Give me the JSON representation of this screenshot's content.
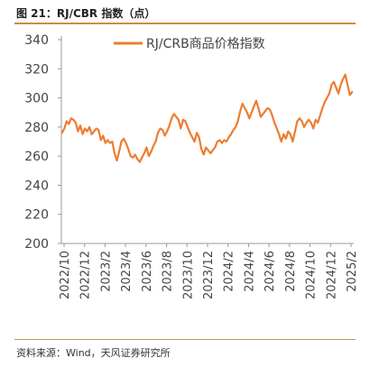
{
  "figure": {
    "title": "图 21：RJ/CBR 指数（点）",
    "source": "资料来源：Wind，天风证券研究所"
  },
  "chart_data": {
    "type": "line",
    "title": "",
    "xlabel": "",
    "ylabel": "",
    "ylim": [
      200,
      340
    ],
    "yticks": [
      200,
      220,
      240,
      260,
      280,
      300,
      320,
      340
    ],
    "x_tick_labels": [
      "2022/10",
      "2022/12",
      "2023/2",
      "2023/4",
      "2023/6",
      "2023/8",
      "2023/10",
      "2023/12",
      "2024/2",
      "2024/4",
      "2024/6",
      "2024/8",
      "2024/10",
      "2024/12",
      "2025/2"
    ],
    "grid": false,
    "legend_position": "top-center",
    "series": [
      {
        "name": "RJ/CRB商品价格指数",
        "color": "#ed7d31",
        "points": [
          [
            "2022-10-03",
            276
          ],
          [
            "2022-10-10",
            279
          ],
          [
            "2022-10-17",
            284
          ],
          [
            "2022-10-24",
            282
          ],
          [
            "2022-10-31",
            286
          ],
          [
            "2022-11-07",
            285
          ],
          [
            "2022-11-14",
            283
          ],
          [
            "2022-11-21",
            277
          ],
          [
            "2022-11-28",
            281
          ],
          [
            "2022-12-05",
            275
          ],
          [
            "2022-12-12",
            279
          ],
          [
            "2022-12-19",
            277
          ],
          [
            "2022-12-26",
            280
          ],
          [
            "2023-01-02",
            275
          ],
          [
            "2023-01-09",
            277
          ],
          [
            "2023-01-16",
            279
          ],
          [
            "2023-01-23",
            278
          ],
          [
            "2023-01-30",
            271
          ],
          [
            "2023-02-06",
            274
          ],
          [
            "2023-02-13",
            269
          ],
          [
            "2023-02-20",
            271
          ],
          [
            "2023-02-27",
            269
          ],
          [
            "2023-03-06",
            270
          ],
          [
            "2023-03-13",
            262
          ],
          [
            "2023-03-20",
            257
          ],
          [
            "2023-03-27",
            263
          ],
          [
            "2023-04-03",
            270
          ],
          [
            "2023-04-10",
            272
          ],
          [
            "2023-04-17",
            269
          ],
          [
            "2023-04-24",
            265
          ],
          [
            "2023-05-01",
            260
          ],
          [
            "2023-05-08",
            259
          ],
          [
            "2023-05-15",
            261
          ],
          [
            "2023-05-22",
            258
          ],
          [
            "2023-05-29",
            256
          ],
          [
            "2023-06-05",
            259
          ],
          [
            "2023-06-12",
            262
          ],
          [
            "2023-06-19",
            266
          ],
          [
            "2023-06-26",
            260
          ],
          [
            "2023-07-03",
            263
          ],
          [
            "2023-07-10",
            267
          ],
          [
            "2023-07-17",
            270
          ],
          [
            "2023-07-24",
            276
          ],
          [
            "2023-07-31",
            279
          ],
          [
            "2023-08-07",
            278
          ],
          [
            "2023-08-14",
            274
          ],
          [
            "2023-08-21",
            277
          ],
          [
            "2023-08-28",
            281
          ],
          [
            "2023-09-04",
            286
          ],
          [
            "2023-09-11",
            289
          ],
          [
            "2023-09-18",
            287
          ],
          [
            "2023-09-25",
            285
          ],
          [
            "2023-10-02",
            279
          ],
          [
            "2023-10-09",
            285
          ],
          [
            "2023-10-16",
            284
          ],
          [
            "2023-10-23",
            280
          ],
          [
            "2023-10-30",
            276
          ],
          [
            "2023-11-06",
            273
          ],
          [
            "2023-11-13",
            270
          ],
          [
            "2023-11-20",
            276
          ],
          [
            "2023-11-27",
            273
          ],
          [
            "2023-12-04",
            265
          ],
          [
            "2023-12-11",
            261
          ],
          [
            "2023-12-18",
            266
          ],
          [
            "2023-12-25",
            264
          ],
          [
            "2024-01-01",
            262
          ],
          [
            "2024-01-08",
            264
          ],
          [
            "2024-01-15",
            266
          ],
          [
            "2024-01-22",
            270
          ],
          [
            "2024-01-29",
            271
          ],
          [
            "2024-02-05",
            269
          ],
          [
            "2024-02-12",
            271
          ],
          [
            "2024-02-19",
            270
          ],
          [
            "2024-02-26",
            273
          ],
          [
            "2024-03-04",
            275
          ],
          [
            "2024-03-11",
            278
          ],
          [
            "2024-03-18",
            280
          ],
          [
            "2024-03-25",
            284
          ],
          [
            "2024-04-01",
            291
          ],
          [
            "2024-04-08",
            296
          ],
          [
            "2024-04-15",
            293
          ],
          [
            "2024-04-22",
            290
          ],
          [
            "2024-04-29",
            286
          ],
          [
            "2024-05-06",
            290
          ],
          [
            "2024-05-13",
            294
          ],
          [
            "2024-05-20",
            298
          ],
          [
            "2024-05-27",
            293
          ],
          [
            "2024-06-03",
            287
          ],
          [
            "2024-06-10",
            289
          ],
          [
            "2024-06-17",
            291
          ],
          [
            "2024-06-24",
            293
          ],
          [
            "2024-07-01",
            292
          ],
          [
            "2024-07-08",
            288
          ],
          [
            "2024-07-15",
            283
          ],
          [
            "2024-07-22",
            279
          ],
          [
            "2024-07-29",
            275
          ],
          [
            "2024-08-05",
            270
          ],
          [
            "2024-08-12",
            275
          ],
          [
            "2024-08-19",
            272
          ],
          [
            "2024-08-26",
            277
          ],
          [
            "2024-09-02",
            275
          ],
          [
            "2024-09-09",
            270
          ],
          [
            "2024-09-16",
            277
          ],
          [
            "2024-09-23",
            284
          ],
          [
            "2024-09-30",
            286
          ],
          [
            "2024-10-07",
            284
          ],
          [
            "2024-10-14",
            280
          ],
          [
            "2024-10-21",
            283
          ],
          [
            "2024-10-28",
            285
          ],
          [
            "2024-11-04",
            283
          ],
          [
            "2024-11-11",
            279
          ],
          [
            "2024-11-18",
            285
          ],
          [
            "2024-11-25",
            283
          ],
          [
            "2024-12-02",
            288
          ],
          [
            "2024-12-09",
            293
          ],
          [
            "2024-12-16",
            297
          ],
          [
            "2024-12-23",
            300
          ],
          [
            "2024-12-30",
            303
          ],
          [
            "2025-01-06",
            309
          ],
          [
            "2025-01-13",
            311
          ],
          [
            "2025-01-20",
            307
          ],
          [
            "2025-01-27",
            303
          ],
          [
            "2025-02-03",
            309
          ],
          [
            "2025-02-10",
            313
          ],
          [
            "2025-02-17",
            316
          ],
          [
            "2025-02-24",
            309
          ],
          [
            "2025-03-03",
            302
          ],
          [
            "2025-03-10",
            304
          ]
        ]
      }
    ]
  }
}
